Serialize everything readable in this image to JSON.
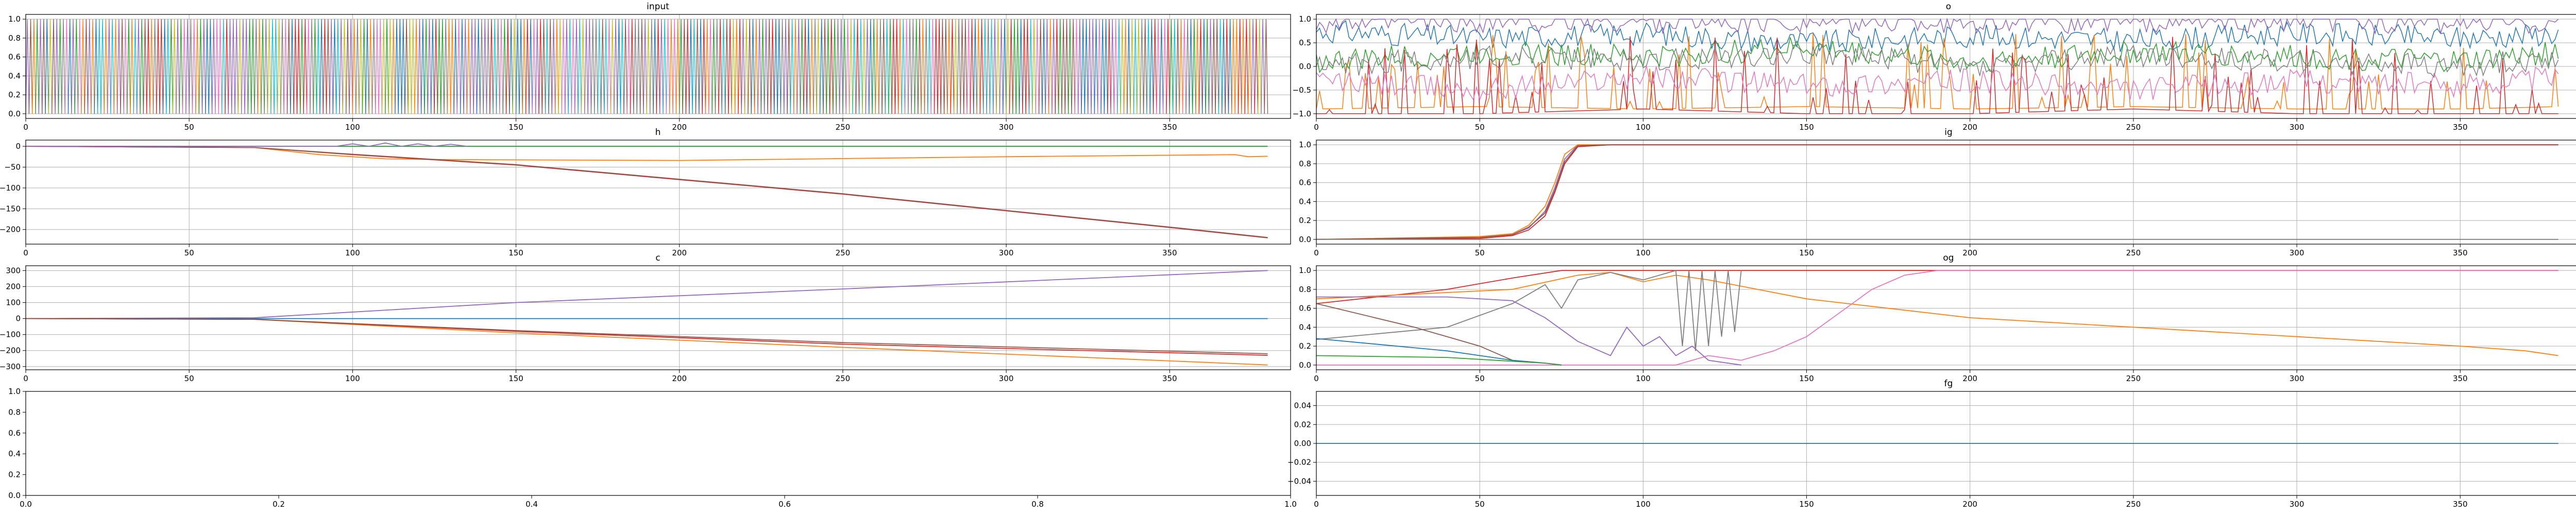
{
  "figure": {
    "title": ""
  },
  "colors": [
    "#1f77b4",
    "#ff7f0e",
    "#2ca02c",
    "#d62728",
    "#9467bd",
    "#8c564b",
    "#e377c2",
    "#7f7f7f",
    "#bcbd22",
    "#17becf"
  ],
  "chart_data": [
    {
      "id": "input",
      "type": "line",
      "title": "input",
      "xlabel": "",
      "ylabel": "",
      "xlim": [
        0,
        387
      ],
      "ylim": [
        -0.05,
        1.05
      ],
      "xticks": [
        0,
        50,
        100,
        150,
        200,
        250,
        300,
        350
      ],
      "yticks": [
        0.0,
        0.2,
        0.4,
        0.6,
        0.8,
        1.0
      ],
      "ytick_labels": [
        "0.0",
        "0.2",
        "0.4",
        "0.6",
        "0.8",
        "1.0"
      ],
      "grid": true,
      "series_desc": "multiple series of 0/1 one-hot pulses, one per timestep (x 0-380)",
      "x_range": [
        0,
        380
      ],
      "series": []
    },
    {
      "id": "o",
      "type": "line",
      "title": "o",
      "xlabel": "",
      "ylabel": "",
      "xlim": [
        0,
        387
      ],
      "ylim": [
        -1.1,
        1.1
      ],
      "xticks": [
        0,
        50,
        100,
        150,
        200,
        250,
        300,
        350
      ],
      "yticks": [
        -1.0,
        -0.5,
        0.0,
        0.5,
        1.0
      ],
      "ytick_labels": [
        "−1.0",
        "−0.5",
        "0.0",
        "0.5",
        "1.0"
      ],
      "grid": true,
      "series": [
        {
          "color": 0,
          "x": [
            0,
            50,
            100,
            150,
            200,
            250,
            300,
            350,
            380
          ],
          "y": [
            0.75,
            0.6,
            0.7,
            0.5,
            0.65,
            0.55,
            0.7,
            0.6,
            0.7
          ]
        },
        {
          "color": 1,
          "x": [
            0,
            50,
            100,
            150,
            200,
            250,
            300,
            350,
            380
          ],
          "y": [
            -0.9,
            -0.85,
            -0.9,
            -0.85,
            -0.9,
            -0.85,
            -0.9,
            -0.9,
            -0.85
          ]
        },
        {
          "color": 2,
          "x": [
            0,
            50,
            100,
            150,
            200,
            250,
            300,
            350,
            380
          ],
          "y": [
            0.1,
            0.3,
            0.2,
            0.4,
            0.1,
            0.3,
            0.2,
            0.1,
            0.3
          ]
        },
        {
          "color": 3,
          "x": [
            0,
            50,
            100,
            150,
            200,
            250,
            300,
            350,
            380
          ],
          "y": [
            -1.0,
            -1.0,
            -0.9,
            -1.0,
            -1.0,
            -0.9,
            -1.0,
            -1.0,
            -1.0
          ]
        },
        {
          "color": 4,
          "x": [
            0,
            50,
            100,
            150,
            200,
            250,
            300,
            350,
            380
          ],
          "y": [
            0.95,
            0.95,
            0.95,
            0.95,
            0.95,
            0.95,
            0.95,
            0.95,
            0.95
          ]
        },
        {
          "color": 6,
          "x": [
            0,
            50,
            100,
            150,
            200,
            250,
            300,
            350,
            380
          ],
          "y": [
            -0.3,
            -0.5,
            -0.2,
            -0.4,
            -0.3,
            -0.5,
            -0.3,
            -0.4,
            -0.2
          ]
        },
        {
          "color": 7,
          "x": [
            0,
            50,
            100,
            150,
            200,
            250,
            300,
            350,
            380
          ],
          "y": [
            0.0,
            0.2,
            0.1,
            0.3,
            0.0,
            0.2,
            0.1,
            0.0,
            0.2
          ]
        }
      ]
    },
    {
      "id": "h",
      "type": "line",
      "title": "h",
      "xlabel": "",
      "ylabel": "",
      "xlim": [
        0,
        387
      ],
      "ylim": [
        -235,
        15
      ],
      "xticks": [
        0,
        50,
        100,
        150,
        200,
        250,
        300,
        350
      ],
      "yticks": [
        0,
        -50,
        -100,
        -150,
        -200
      ],
      "ytick_labels": [
        "0",
        "−50",
        "−100",
        "−150",
        "−200"
      ],
      "grid": true,
      "series": [
        {
          "color": 0,
          "x": [
            0,
            70,
            100,
            200,
            300,
            380
          ],
          "y": [
            0,
            0,
            0,
            0,
            0,
            0
          ]
        },
        {
          "color": 2,
          "x": [
            0,
            70,
            100,
            200,
            300,
            380
          ],
          "y": [
            0,
            0,
            0,
            0,
            0,
            0
          ]
        },
        {
          "color": 1,
          "x": [
            0,
            70,
            90,
            110,
            130,
            200,
            300,
            370,
            374,
            380
          ],
          "y": [
            0,
            -3,
            -20,
            -30,
            -32,
            -34,
            -25,
            -20,
            -25,
            -24
          ]
        },
        {
          "color": 3,
          "x": [
            0,
            70,
            100,
            150,
            200,
            250,
            300,
            350,
            380
          ],
          "y": [
            0,
            -3,
            -20,
            -45,
            -80,
            -115,
            -155,
            -195,
            -220
          ]
        },
        {
          "color": 5,
          "x": [
            0,
            70,
            100,
            150,
            200,
            250,
            300,
            350,
            380
          ],
          "y": [
            0,
            -3,
            -19,
            -44,
            -79,
            -114,
            -154,
            -194,
            -219
          ]
        },
        {
          "color": 4,
          "x": [
            0,
            95,
            100,
            105,
            110,
            115,
            120,
            125,
            130,
            135
          ],
          "y": [
            0,
            0,
            6,
            0,
            8,
            0,
            6,
            0,
            5,
            0
          ]
        }
      ]
    },
    {
      "id": "ig",
      "type": "line",
      "title": "ig",
      "xlabel": "",
      "ylabel": "",
      "xlim": [
        0,
        387
      ],
      "ylim": [
        -0.05,
        1.05
      ],
      "xticks": [
        0,
        50,
        100,
        150,
        200,
        250,
        300,
        350
      ],
      "yticks": [
        0.0,
        0.2,
        0.4,
        0.6,
        0.8,
        1.0
      ],
      "ytick_labels": [
        "0.0",
        "0.2",
        "0.4",
        "0.6",
        "0.8",
        "1.0"
      ],
      "grid": true,
      "series": [
        {
          "color": 4,
          "x": [
            0,
            50,
            60,
            65,
            70,
            73,
            76,
            80,
            90,
            380
          ],
          "y": [
            0,
            0.02,
            0.05,
            0.12,
            0.3,
            0.55,
            0.85,
            1.0,
            1.0,
            1.0
          ]
        },
        {
          "color": 3,
          "x": [
            0,
            50,
            60,
            65,
            70,
            73,
            76,
            80,
            90,
            380
          ],
          "y": [
            0,
            0.01,
            0.04,
            0.1,
            0.25,
            0.5,
            0.8,
            0.98,
            1.0,
            1.0
          ]
        },
        {
          "color": 1,
          "x": [
            0,
            50,
            60,
            65,
            70,
            73,
            76,
            80,
            90,
            380
          ],
          "y": [
            0,
            0.03,
            0.06,
            0.15,
            0.35,
            0.6,
            0.9,
            1.0,
            1.0,
            1.0
          ]
        },
        {
          "color": 5,
          "x": [
            0,
            50,
            60,
            65,
            70,
            73,
            76,
            80,
            90,
            380
          ],
          "y": [
            0,
            0.02,
            0.05,
            0.13,
            0.28,
            0.52,
            0.82,
            0.99,
            1.0,
            1.0
          ]
        },
        {
          "color": 7,
          "x": [
            0,
            380
          ],
          "y": [
            0.0,
            0.0
          ]
        }
      ]
    },
    {
      "id": "c",
      "type": "line",
      "title": "c",
      "xlabel": "",
      "ylabel": "",
      "xlim": [
        0,
        387
      ],
      "ylim": [
        -320,
        330
      ],
      "xticks": [
        0,
        50,
        100,
        150,
        200,
        250,
        300,
        350
      ],
      "yticks": [
        300,
        200,
        100,
        0,
        -100,
        -200,
        -300
      ],
      "ytick_labels": [
        "300",
        "200",
        "100",
        "0",
        "−100",
        "−200",
        "−300"
      ],
      "grid": true,
      "series": [
        {
          "color": 4,
          "x": [
            0,
            70,
            150,
            250,
            380
          ],
          "y": [
            0,
            5,
            100,
            185,
            300
          ]
        },
        {
          "color": 0,
          "x": [
            0,
            380
          ],
          "y": [
            0,
            0
          ]
        },
        {
          "color": 1,
          "x": [
            0,
            70,
            150,
            250,
            380
          ],
          "y": [
            0,
            -5,
            -90,
            -180,
            -290
          ]
        },
        {
          "color": 3,
          "x": [
            0,
            70,
            150,
            250,
            380
          ],
          "y": [
            0,
            -5,
            -80,
            -160,
            -230
          ]
        },
        {
          "color": 5,
          "x": [
            0,
            70,
            150,
            250,
            380
          ],
          "y": [
            0,
            -5,
            -75,
            -150,
            -220
          ]
        }
      ]
    },
    {
      "id": "og",
      "type": "line",
      "title": "og",
      "xlabel": "",
      "ylabel": "",
      "xlim": [
        0,
        387
      ],
      "ylim": [
        -0.05,
        1.05
      ],
      "xticks": [
        0,
        50,
        100,
        150,
        200,
        250,
        300,
        350
      ],
      "yticks": [
        0.0,
        0.2,
        0.4,
        0.6,
        0.8,
        1.0
      ],
      "ytick_labels": [
        "0.0",
        "0.2",
        "0.4",
        "0.6",
        "0.8",
        "1.0"
      ],
      "grid": true,
      "series": [
        {
          "color": 3,
          "x": [
            0,
            40,
            60,
            75,
            90,
            380
          ],
          "y": [
            0.65,
            0.8,
            0.92,
            1.0,
            1.0,
            1.0
          ]
        },
        {
          "color": 1,
          "x": [
            0,
            60,
            80,
            90,
            100,
            110,
            120,
            150,
            200,
            250,
            300,
            350,
            370,
            380
          ],
          "y": [
            0.7,
            0.8,
            0.95,
            0.98,
            0.88,
            0.95,
            0.9,
            0.7,
            0.5,
            0.4,
            0.3,
            0.2,
            0.15,
            0.1
          ]
        },
        {
          "color": 7,
          "x": [
            0,
            40,
            60,
            70,
            75,
            80,
            90,
            100,
            110,
            112,
            114,
            116,
            118,
            120,
            122,
            124,
            126,
            128,
            130
          ],
          "y": [
            0.27,
            0.4,
            0.65,
            0.85,
            0.6,
            0.9,
            0.98,
            0.9,
            1.0,
            0.2,
            1.0,
            0.15,
            1.0,
            0.2,
            1.0,
            0.3,
            1.0,
            0.35,
            1.0
          ]
        },
        {
          "color": 6,
          "x": [
            0,
            110,
            120,
            130,
            140,
            150,
            160,
            170,
            180,
            190,
            380
          ],
          "y": [
            0.0,
            0.0,
            0.1,
            0.05,
            0.15,
            0.3,
            0.55,
            0.8,
            0.95,
            1.0,
            1.0
          ]
        },
        {
          "color": 4,
          "x": [
            0,
            40,
            60,
            70,
            80,
            90,
            95,
            100,
            105,
            110,
            115,
            120,
            130
          ],
          "y": [
            0.72,
            0.72,
            0.68,
            0.5,
            0.25,
            0.1,
            0.4,
            0.2,
            0.3,
            0.1,
            0.2,
            0.05,
            0.0
          ]
        },
        {
          "color": 5,
          "x": [
            0,
            30,
            50,
            60,
            70,
            75
          ],
          "y": [
            0.65,
            0.4,
            0.2,
            0.05,
            0.02,
            0.0
          ]
        },
        {
          "color": 0,
          "x": [
            0,
            40,
            60,
            70,
            75
          ],
          "y": [
            0.28,
            0.15,
            0.05,
            0.02,
            0.0
          ]
        },
        {
          "color": 2,
          "x": [
            0,
            40,
            60,
            70,
            75
          ],
          "y": [
            0.1,
            0.08,
            0.04,
            0.02,
            0.0
          ]
        }
      ]
    },
    {
      "id": "empty",
      "type": "line",
      "title": "",
      "xlabel": "",
      "ylabel": "",
      "xlim": [
        0.0,
        1.0
      ],
      "ylim": [
        0.0,
        1.0
      ],
      "xticks": [
        0.0,
        0.2,
        0.4,
        0.6,
        0.8,
        1.0
      ],
      "xtick_labels": [
        "0.0",
        "0.2",
        "0.4",
        "0.6",
        "0.8",
        "1.0"
      ],
      "yticks": [
        0.0,
        0.2,
        0.4,
        0.6,
        0.8,
        1.0
      ],
      "ytick_labels": [
        "0.0",
        "0.2",
        "0.4",
        "0.6",
        "0.8",
        "1.0"
      ],
      "grid": false,
      "series": []
    },
    {
      "id": "fg",
      "type": "line",
      "title": "fg",
      "xlabel": "",
      "ylabel": "",
      "xlim": [
        0,
        387
      ],
      "ylim": [
        -0.055,
        0.055
      ],
      "xticks": [
        0,
        50,
        100,
        150,
        200,
        250,
        300,
        350
      ],
      "yticks": [
        0.04,
        0.02,
        0.0,
        -0.02,
        -0.04
      ],
      "ytick_labels": [
        "0.04",
        "0.02",
        "0.00",
        "−0.02",
        "−0.04"
      ],
      "grid": true,
      "series": [
        {
          "color": 0,
          "x": [
            0,
            380
          ],
          "y": [
            0.0,
            0.0
          ]
        }
      ]
    }
  ]
}
